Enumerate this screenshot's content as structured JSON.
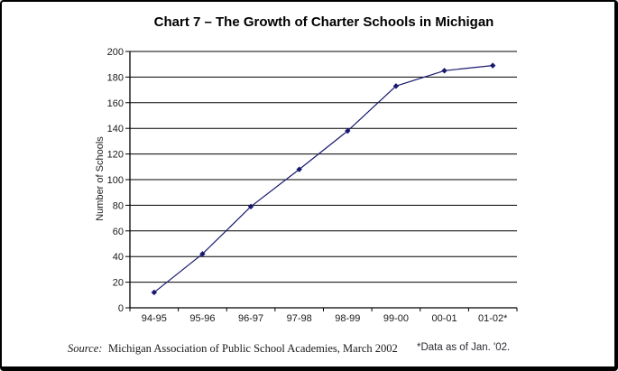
{
  "chart_data": {
    "type": "line",
    "title": "Chart 7 – The Growth of Charter Schools in Michigan",
    "ylabel": "Number of Schools",
    "xlabel": "",
    "categories": [
      "94-95",
      "95-96",
      "96-97",
      "97-98",
      "98-99",
      "99-00",
      "00-01",
      "01-02*"
    ],
    "series": [
      {
        "name": "Number of Schools",
        "values": [
          12,
          42,
          79,
          108,
          138,
          173,
          185,
          189
        ]
      }
    ],
    "ylim": [
      0,
      200
    ],
    "yticks": [
      0,
      20,
      40,
      60,
      80,
      100,
      120,
      140,
      160,
      180,
      200
    ],
    "grid": "horizontal",
    "legend_position": "none",
    "line_color": "#191970",
    "marker": "diamond",
    "axis_color": "#000000",
    "gridline_color": "#000000",
    "background_color": "#ffffff"
  },
  "footer": {
    "source_label": "Source:",
    "source_text": "Michigan Association of Public School Academies, March 2002",
    "note": "*Data as of Jan. '02."
  }
}
